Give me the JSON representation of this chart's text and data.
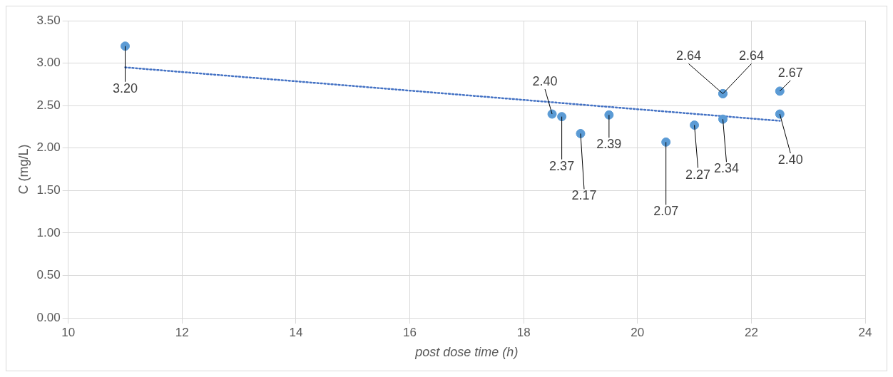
{
  "chart_data": {
    "type": "scatter",
    "xlabel": "post dose time (h)",
    "ylabel": "C (mg/L)",
    "xlim": [
      10,
      24
    ],
    "xticks": [
      10,
      12,
      14,
      16,
      18,
      20,
      22,
      24
    ],
    "ylim": [
      0,
      3.5
    ],
    "yticks": [
      {
        "value": 0,
        "label": "0.00"
      },
      {
        "value": 0.5,
        "label": "0.50"
      },
      {
        "value": 1,
        "label": "1.00"
      },
      {
        "value": 1.5,
        "label": "1.50"
      },
      {
        "value": 2,
        "label": "2.00"
      },
      {
        "value": 2.5,
        "label": "2.50"
      },
      {
        "value": 3,
        "label": "3.00"
      },
      {
        "value": 3.5,
        "label": "3.50"
      }
    ],
    "grid": true,
    "legend": false,
    "marker": "circle",
    "series": [
      {
        "type": "scatter",
        "color": "#5b9bd5",
        "x": [
          11,
          18.5,
          18.67,
          19,
          19.5,
          20.5,
          21,
          21.5,
          21.5,
          21.5,
          22.5,
          22.5
        ],
        "values": [
          3.2,
          2.4,
          2.37,
          2.17,
          2.39,
          2.07,
          2.27,
          2.64,
          2.64,
          2.34,
          2.67,
          2.4
        ],
        "value_labels": [
          "3.20",
          "2.40",
          "2.37",
          "2.17",
          "2.39",
          "2.07",
          "2.27",
          "2.64",
          "2.64",
          "2.34",
          "2.67",
          "2.40"
        ]
      },
      {
        "type": "line",
        "color": "#4472c4",
        "line_style": "dotted",
        "marker": "none",
        "x": [
          11,
          22.5
        ],
        "values": [
          2.95,
          2.32
        ]
      }
    ]
  }
}
